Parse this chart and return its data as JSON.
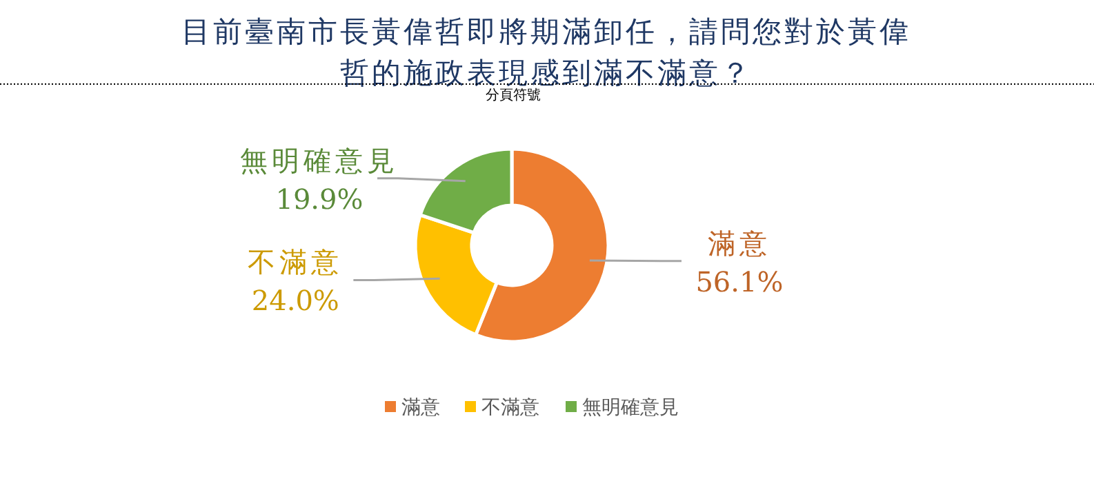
{
  "chart_data": {
    "type": "donut",
    "title": "目前臺南市長黃偉哲即將期滿卸任，請問您對於黃偉哲的施政表現感到滿不滿意？",
    "categories": [
      "滿意",
      "不滿意",
      "無明確意見"
    ],
    "values": [
      56.1,
      24.0,
      19.9
    ],
    "colors": [
      "#ed7d31",
      "#ffc000",
      "#70ad47"
    ],
    "value_labels": [
      "56.1%",
      "24.0%",
      "19.9%"
    ],
    "legend": "bottom",
    "annotations": [
      "分頁符號"
    ]
  }
}
